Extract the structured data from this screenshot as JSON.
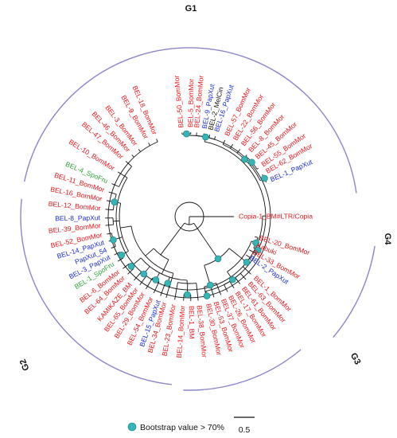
{
  "colors": {
    "red": "#e8161c",
    "blue": "#1c2bd6",
    "green": "#2ea43a",
    "black": "#111111",
    "bootstrap_dot": "#35b5b5",
    "group_arc": "#8a86c8"
  },
  "groups": [
    {
      "label": "G1"
    },
    {
      "label": "G4"
    },
    {
      "label": "G3"
    },
    {
      "label": "G2"
    }
  ],
  "legend": {
    "bootstrap_label": "Bootstrap value > 70%",
    "scale_label": "0.5"
  },
  "leaves": [
    {
      "label": "BEL-50_BomMor",
      "color": "red"
    },
    {
      "label": "BEL-5_BomMor",
      "color": "red"
    },
    {
      "label": "BEL-24_BomMor",
      "color": "red"
    },
    {
      "label": "BEL-9_PapXut",
      "color": "blue"
    },
    {
      "label": "BEL-2_MelCin",
      "color": "black"
    },
    {
      "label": "BEL-16_PapXut",
      "color": "blue"
    },
    {
      "label": "BEL-57_BomMor",
      "color": "red"
    },
    {
      "label": "BEL-22_BomMor",
      "color": "red"
    },
    {
      "label": "BEL-56_BomMor",
      "color": "red"
    },
    {
      "label": "BEL-8_BomMor",
      "color": "red"
    },
    {
      "label": "BEL-45_BomMor",
      "color": "red"
    },
    {
      "label": "BEL-55_BomMor",
      "color": "red"
    },
    {
      "label": "BEL-62_BomMor",
      "color": "red"
    },
    {
      "label": "BEL-1_PapXut",
      "color": "blue"
    },
    {
      "label": "Copia-1_BM#LTR/Copia",
      "color": "red"
    },
    {
      "label": "BEL-20_BomMor",
      "color": "red"
    },
    {
      "label": "Kabuki",
      "color": "red"
    },
    {
      "label": "BEL-33_BomMor",
      "color": "red"
    },
    {
      "label": "BEL-2_PapXut",
      "color": "blue"
    },
    {
      "label": "BEL-1_BomMor",
      "color": "red"
    },
    {
      "label": "BEL-63_BomMor",
      "color": "red"
    },
    {
      "label": "BEL-61_BomMor",
      "color": "red"
    },
    {
      "label": "BEL-17_BomMor",
      "color": "red"
    },
    {
      "label": "BEL-26_BomMor",
      "color": "red"
    },
    {
      "label": "BEL-37_BomMor",
      "color": "red"
    },
    {
      "label": "BEL-53_BomMor",
      "color": "red"
    },
    {
      "label": "BEL-30_BomMor",
      "color": "red"
    },
    {
      "label": "BEL-38_BomMor",
      "color": "red"
    },
    {
      "label": "BEL-1_BM",
      "color": "red"
    },
    {
      "label": "BEL-14_BomMor",
      "color": "red"
    },
    {
      "label": "BEL-23_BomMor",
      "color": "red"
    },
    {
      "label": "BEL-34_BomMor",
      "color": "red"
    },
    {
      "label": "BEL-15_PapXut",
      "color": "blue"
    },
    {
      "label": "BEL-54_BomMor",
      "color": "red"
    },
    {
      "label": "BEL-29_BomMor",
      "color": "red"
    },
    {
      "label": "BEL-65_BomMor",
      "color": "red"
    },
    {
      "label": "KAMIKAZE_BM",
      "color": "red"
    },
    {
      "label": "BEL-64_BomMor",
      "color": "red"
    },
    {
      "label": "BEL-6_BomMor",
      "color": "red"
    },
    {
      "label": "BEL-1_SpoFru",
      "color": "green"
    },
    {
      "label": "BEL-3_PapXut",
      "color": "blue"
    },
    {
      "label": "PapXut_54",
      "color": "blue"
    },
    {
      "label": "BEL-14_PapXut",
      "color": "blue"
    },
    {
      "label": "BEL-52_BomMor",
      "color": "red"
    },
    {
      "label": "BEL-39_BomMor",
      "color": "red"
    },
    {
      "label": "BEL-8_PapXut",
      "color": "blue"
    },
    {
      "label": "BEL-12_BomMor",
      "color": "red"
    },
    {
      "label": "BEL-16_BomMor",
      "color": "red"
    },
    {
      "label": "BEL-11_BomMor",
      "color": "red"
    },
    {
      "label": "BEL-4_SpoFru",
      "color": "green"
    },
    {
      "label": "BEL-10_BomMor",
      "color": "red"
    },
    {
      "label": "BEL-47_BomMor",
      "color": "red"
    },
    {
      "label": "BEL-46_BomMor",
      "color": "red"
    },
    {
      "label": "BEL-3_BomMor",
      "color": "red"
    },
    {
      "label": "BEL-9_BomMor",
      "color": "red"
    },
    {
      "label": "BEL-18_BomMor",
      "color": "red"
    }
  ]
}
